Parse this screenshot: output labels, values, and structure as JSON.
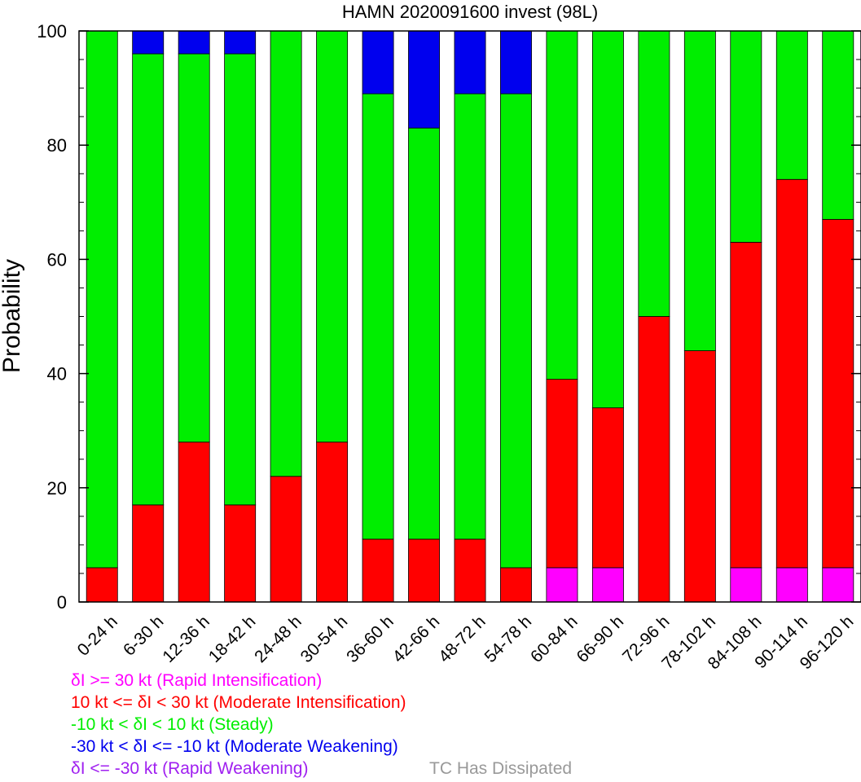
{
  "chart_data": {
    "type": "bar",
    "stacked": true,
    "title": "HAMN 2020091600 invest (98L)",
    "ylabel": "Probability",
    "xlabel": "",
    "ylim": [
      0,
      100
    ],
    "yticks": [
      0,
      20,
      40,
      60,
      80,
      100
    ],
    "grid": false,
    "categories": [
      "0-24 h",
      "6-30 h",
      "12-36 h",
      "18-42 h",
      "24-48 h",
      "30-54 h",
      "36-60 h",
      "42-66 h",
      "48-72 h",
      "54-78 h",
      "60-84 h",
      "66-90 h",
      "72-96 h",
      "78-102 h",
      "84-108 h",
      "90-114 h",
      "96-120 h"
    ],
    "series": [
      {
        "name": "δI >= 30 kt (Rapid Intensification)",
        "color": "#ff00ff",
        "values": [
          0,
          0,
          0,
          0,
          0,
          0,
          0,
          0,
          0,
          0,
          6,
          6,
          0,
          0,
          6,
          6,
          6
        ]
      },
      {
        "name": "10 kt <= δI < 30 kt (Moderate Intensification)",
        "color": "#ff0000",
        "values": [
          6,
          17,
          28,
          17,
          22,
          28,
          11,
          11,
          11,
          6,
          33,
          28,
          50,
          44,
          57,
          68,
          61
        ]
      },
      {
        "name": "-10 kt < δI < 10 kt (Steady)",
        "color": "#00ee00",
        "values": [
          94,
          79,
          68,
          79,
          78,
          72,
          78,
          72,
          78,
          83,
          61,
          66,
          50,
          56,
          37,
          26,
          33
        ]
      },
      {
        "name": "-30 kt < δI <= -10 kt (Moderate Weakening)",
        "color": "#0000ee",
        "values": [
          0,
          4,
          4,
          4,
          0,
          0,
          11,
          17,
          11,
          11,
          0,
          0,
          0,
          0,
          0,
          0,
          0
        ]
      },
      {
        "name": "δI <= -30 kt (Rapid Weakening)",
        "color": "#a020f0",
        "values": [
          0,
          0,
          0,
          0,
          0,
          0,
          0,
          0,
          0,
          0,
          0,
          0,
          0,
          0,
          0,
          0,
          0
        ]
      }
    ],
    "extra_legend": {
      "name": "TC Has Dissipated",
      "color": "#999999"
    }
  }
}
